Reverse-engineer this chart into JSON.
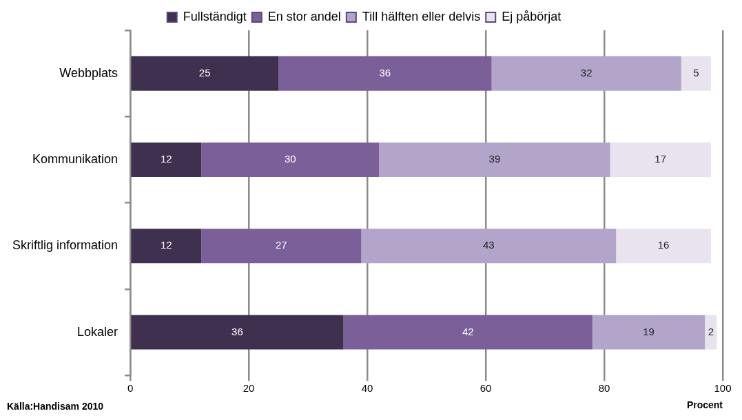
{
  "chart_data": {
    "type": "bar",
    "orientation": "horizontal",
    "stacked": true,
    "categories": [
      "Webbplats",
      "Kommunikation",
      "Skriftlig information",
      "Lokaler"
    ],
    "series": [
      {
        "name": "Fullständigt",
        "color": "#3f3050",
        "values": [
          25,
          12,
          12,
          36
        ]
      },
      {
        "name": "En stor andel",
        "color": "#7a5f98",
        "values": [
          36,
          30,
          27,
          42
        ]
      },
      {
        "name": "Till hälften eller delvis",
        "color": "#b3a4c9",
        "values": [
          32,
          39,
          43,
          19
        ]
      },
      {
        "name": "Ej påbörjat",
        "color": "#e8e3ef",
        "values": [
          5,
          17,
          16,
          2
        ]
      }
    ],
    "xlim": [
      0,
      100
    ],
    "xticks": [
      0,
      20,
      40,
      60,
      80,
      100
    ],
    "grid": "x",
    "legend": "top",
    "data_labels": true,
    "xlabel": "Procent",
    "annotations": [
      "Källa:Handisam 2010"
    ]
  }
}
